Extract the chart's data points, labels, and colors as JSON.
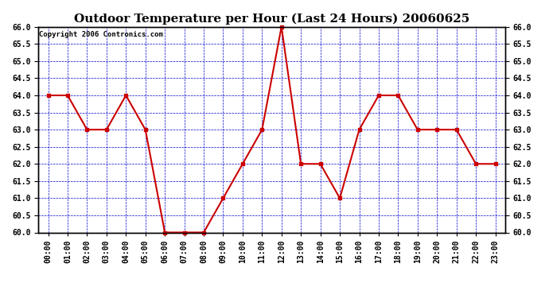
{
  "title": "Outdoor Temperature per Hour (Last 24 Hours) 20060625",
  "copyright_text": "Copyright 2006 Contronics.com",
  "hours": [
    "00:00",
    "01:00",
    "02:00",
    "03:00",
    "04:00",
    "05:00",
    "06:00",
    "07:00",
    "08:00",
    "09:00",
    "10:00",
    "11:00",
    "12:00",
    "13:00",
    "14:00",
    "15:00",
    "16:00",
    "17:00",
    "18:00",
    "19:00",
    "20:00",
    "21:00",
    "22:00",
    "23:00"
  ],
  "temperatures": [
    64.0,
    64.0,
    63.0,
    63.0,
    64.0,
    63.0,
    60.0,
    60.0,
    60.0,
    61.0,
    62.0,
    63.0,
    66.0,
    62.0,
    62.0,
    61.0,
    63.0,
    64.0,
    64.0,
    63.0,
    63.0,
    63.0,
    62.0,
    62.0
  ],
  "ylim": [
    60.0,
    66.0
  ],
  "ytick_step": 0.5,
  "line_color": "#cc0000",
  "marker": "s",
  "marker_size": 3,
  "bg_color": "#ffffff",
  "plot_bg_color": "#ffffff",
  "grid_color": "#0000cc",
  "title_fontsize": 11,
  "copyright_fontsize": 6.5,
  "tick_label_fontsize": 7,
  "title_color": "#000000",
  "copyright_color": "#000000"
}
